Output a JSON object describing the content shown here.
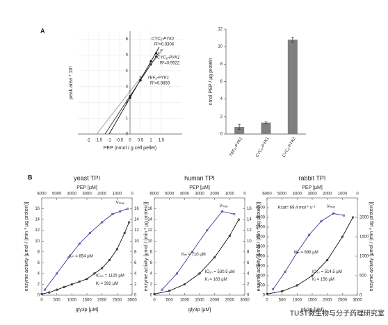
{
  "chart_data": [
    {
      "type": "line",
      "panel": "A",
      "xlabel": "PEP (nmol / g cell pellet)",
      "ylabel": "peak area * 10⁵",
      "xlim": [
        -2.5,
        2.5
      ],
      "xticks": [
        -2,
        -1.5,
        -1,
        -0.5,
        0,
        0.5,
        1,
        1.5
      ],
      "ylim": [
        0,
        6.5
      ],
      "yticks": [
        0,
        1,
        2,
        3,
        4,
        5,
        6
      ],
      "series": [
        {
          "name": "CYC₆-PYK2",
          "r2": "R²=0.9306",
          "color": "#999999",
          "x": [
            0,
            0.5,
            1,
            1.5
          ],
          "values": [
            2.7,
            3.6,
            4.4,
            5.3
          ],
          "fit_x": [
            -1.6,
            1.6
          ],
          "fit_y": [
            0,
            5.4
          ]
        },
        {
          "name": "CYC₆-PYK1",
          "r2": "R²=0.9922",
          "color": "#333333",
          "x": [
            0,
            0.5,
            1,
            1.25
          ],
          "values": [
            2.4,
            3.4,
            4.4,
            4.9
          ],
          "fit_x": [
            -1.2,
            1.4
          ],
          "fit_y": [
            0,
            5.2
          ]
        },
        {
          "name": "TEF₆-PYK1",
          "r2": "R²=0.9859",
          "color": "#111111",
          "x": [
            0,
            0.5,
            1,
            1.25
          ],
          "values": [
            2.3,
            3.4,
            4.6,
            5.1
          ],
          "fit_x": [
            -1,
            1.4
          ],
          "fit_y": [
            0,
            5.5
          ]
        }
      ]
    },
    {
      "type": "bar",
      "ylabel": "nmol PEP / µg protein",
      "categories": [
        "TEF₆-PYK1",
        "CYC₆-PYK1",
        "CYC₆-PYK2"
      ],
      "values": [
        0.8,
        1.3,
        10.8
      ],
      "errors": [
        0.3,
        0.1,
        0.3
      ],
      "color": "#7f7f7f",
      "ylim": [
        0,
        12
      ],
      "yticks": [
        0,
        2,
        4,
        6,
        8,
        10,
        12
      ]
    },
    {
      "type": "kinetics",
      "panel": "B",
      "title": "yeast TPI",
      "x2label": "PEP [µM]",
      "xlabel": "gly3p [µM]",
      "ylabel": "enzyme activity [µmol / (min * µg protein)]",
      "y2label": "enzyme activity [µmol / (min * µg protein)]",
      "xlim": [
        0,
        3000
      ],
      "xticks": [
        0,
        500,
        1000,
        1500,
        2000,
        2500,
        3000
      ],
      "x2lim": [
        6000,
        0
      ],
      "x2ticks": [
        6000,
        5000,
        4000,
        3000,
        2000,
        1000,
        0
      ],
      "ylim": [
        0,
        18
      ],
      "yticks": [
        0,
        2,
        4,
        6,
        8,
        10,
        12,
        14,
        16
      ],
      "y2lim": [
        0,
        18
      ],
      "y2ticks": [
        0,
        2,
        4,
        6,
        8,
        10,
        12,
        14,
        16
      ],
      "series": [
        {
          "color": "#3b3b9e",
          "xaxis": "x2",
          "x": [
            5800,
            5000,
            4200,
            3500,
            2800,
            2000,
            1300,
            800,
            300
          ],
          "values": [
            1,
            4,
            7,
            9.5,
            11.5,
            13.5,
            15,
            15.5,
            16
          ]
        },
        {
          "color": "#111111",
          "axis": "y2",
          "x": [
            0,
            250,
            500,
            750,
            1000,
            1250,
            1500,
            1750,
            2000,
            2250,
            2500,
            2750,
            2900
          ],
          "values": [
            0.2,
            0.5,
            1,
            1.5,
            2,
            2.5,
            3,
            4,
            5,
            6.5,
            8.5,
            11.5,
            13.5
          ]
        }
      ],
      "annotations": [
        "Vₘₐₓ",
        "Kₘ = 854 µM",
        "IC₅₀ = 1125 µM",
        "Kᵢ = 392 µM"
      ]
    },
    {
      "type": "kinetics",
      "title": "human TPI",
      "x2label": "PEP [µM]",
      "xlabel": "gly3p [µM]",
      "y2label": "enzyme activity [µmol / (min * µg protein)]",
      "xlim": [
        0,
        3000
      ],
      "xticks": [
        0,
        500,
        1000,
        1500,
        2000,
        2500,
        3000
      ],
      "x2lim": [
        6000,
        0
      ],
      "x2ticks": [
        6000,
        5000,
        4000,
        3000,
        2000,
        1000,
        0
      ],
      "ylim": [
        0,
        18
      ],
      "yticks": [
        0,
        2,
        4,
        6,
        8,
        10,
        12,
        14,
        16
      ],
      "y2lim": [
        0,
        18
      ],
      "y2ticks": [
        0,
        2,
        4,
        6,
        8,
        10,
        12,
        14,
        16
      ],
      "series": [
        {
          "color": "#3b3b9e",
          "xaxis": "x2",
          "x": [
            5500,
            4500,
            3500,
            2500,
            1500,
            700
          ],
          "values": [
            1,
            4,
            8,
            12,
            15.5,
            15
          ]
        },
        {
          "color": "#111111",
          "axis": "y2",
          "x": [
            0,
            500,
            1000,
            1500,
            2000,
            2500,
            2800
          ],
          "values": [
            0.2,
            0.8,
            2,
            4,
            7,
            11,
            14
          ]
        }
      ],
      "annotations": [
        "Vₘₐₓ",
        "Kₘ = 710 µM",
        "IC₅₀ = 530.5 µM",
        "Kᵢ = 163 µM"
      ]
    },
    {
      "type": "kinetics",
      "title": "rabbit TPI",
      "x2label": "PEP [µM]",
      "xlabel": "gly3p [µM]",
      "y2label": "enzyme activity [µmol / (min * µg protein)]",
      "xlim": [
        0,
        3000
      ],
      "xticks": [
        0,
        500,
        1000,
        1500,
        2000,
        2500,
        3000
      ],
      "x2lim": [
        6000,
        0
      ],
      "x2ticks": [
        6000,
        5000,
        4000,
        3000,
        2000,
        1000,
        0
      ],
      "ylim": [
        0,
        5000
      ],
      "yticks": [
        0,
        500,
        1000,
        1500,
        2000,
        2500,
        3000,
        3500,
        4000,
        4500
      ],
      "y2lim": [
        0,
        2500
      ],
      "y2ticks": [
        0,
        500,
        1000,
        1500,
        2000
      ],
      "series": [
        {
          "color": "#3b3b9e",
          "xaxis": "x2",
          "x": [
            5600,
            4800,
            4000,
            3200,
            2400,
            1600,
            900
          ],
          "values": [
            300,
            1200,
            2200,
            3100,
            3800,
            4200,
            4100
          ]
        },
        {
          "color": "#111111",
          "axis": "y2",
          "x": [
            0,
            500,
            1000,
            1500,
            2000,
            2500,
            2850
          ],
          "values": [
            30,
            100,
            250,
            500,
            900,
            1500,
            2000
          ]
        }
      ],
      "annotations": [
        "Kcat= 69.4 mol * s⁻¹",
        "Vₘₐₓ",
        "Kₘ = 698 µM",
        "IC₅₀ = 514.5 µM",
        "Kᵢ = 156 µM"
      ]
    }
  ],
  "watermark": "TUST微生物与分子药理研究室"
}
